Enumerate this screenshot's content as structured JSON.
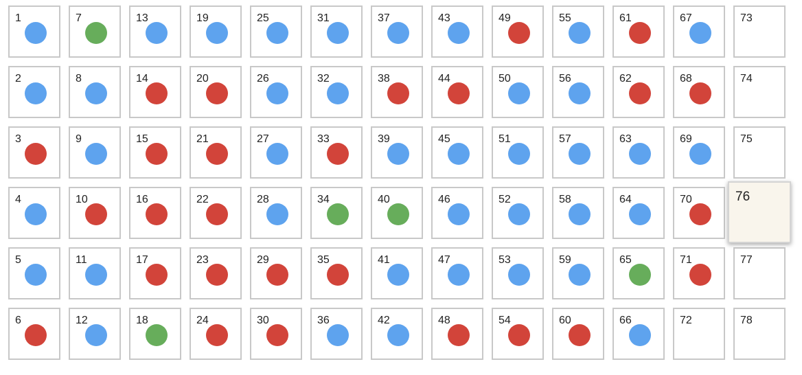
{
  "colors": {
    "blue": "#5ea3ee",
    "red": "#d2443a",
    "green": "#67ad5b",
    "focused_bg": "#f9f5ec",
    "border": "#c8c8c8"
  },
  "grid": {
    "rows": 6,
    "columns": 13,
    "focused_cell": 76,
    "cells": [
      {
        "n": "1",
        "color": "blue"
      },
      {
        "n": "2",
        "color": "blue"
      },
      {
        "n": "3",
        "color": "red"
      },
      {
        "n": "4",
        "color": "blue"
      },
      {
        "n": "5",
        "color": "blue"
      },
      {
        "n": "6",
        "color": "red"
      },
      {
        "n": "7",
        "color": "green"
      },
      {
        "n": "8",
        "color": "blue"
      },
      {
        "n": "9",
        "color": "blue"
      },
      {
        "n": "10",
        "color": "red"
      },
      {
        "n": "11",
        "color": "blue"
      },
      {
        "n": "12",
        "color": "blue"
      },
      {
        "n": "13",
        "color": "blue"
      },
      {
        "n": "14",
        "color": "red"
      },
      {
        "n": "15",
        "color": "red"
      },
      {
        "n": "16",
        "color": "red"
      },
      {
        "n": "17",
        "color": "red"
      },
      {
        "n": "18",
        "color": "green"
      },
      {
        "n": "19",
        "color": "blue"
      },
      {
        "n": "20",
        "color": "red"
      },
      {
        "n": "21",
        "color": "red"
      },
      {
        "n": "22",
        "color": "red"
      },
      {
        "n": "23",
        "color": "red"
      },
      {
        "n": "24",
        "color": "red"
      },
      {
        "n": "25",
        "color": "blue"
      },
      {
        "n": "26",
        "color": "blue"
      },
      {
        "n": "27",
        "color": "blue"
      },
      {
        "n": "28",
        "color": "blue"
      },
      {
        "n": "29",
        "color": "red"
      },
      {
        "n": "30",
        "color": "red"
      },
      {
        "n": "31",
        "color": "blue"
      },
      {
        "n": "32",
        "color": "blue"
      },
      {
        "n": "33",
        "color": "red"
      },
      {
        "n": "34",
        "color": "green"
      },
      {
        "n": "35",
        "color": "red"
      },
      {
        "n": "36",
        "color": "blue"
      },
      {
        "n": "37",
        "color": "blue"
      },
      {
        "n": "38",
        "color": "red"
      },
      {
        "n": "39",
        "color": "blue"
      },
      {
        "n": "40",
        "color": "green"
      },
      {
        "n": "41",
        "color": "blue"
      },
      {
        "n": "42",
        "color": "blue"
      },
      {
        "n": "43",
        "color": "blue"
      },
      {
        "n": "44",
        "color": "red"
      },
      {
        "n": "45",
        "color": "blue"
      },
      {
        "n": "46",
        "color": "blue"
      },
      {
        "n": "47",
        "color": "blue"
      },
      {
        "n": "48",
        "color": "red"
      },
      {
        "n": "49",
        "color": "red"
      },
      {
        "n": "50",
        "color": "blue"
      },
      {
        "n": "51",
        "color": "blue"
      },
      {
        "n": "52",
        "color": "blue"
      },
      {
        "n": "53",
        "color": "blue"
      },
      {
        "n": "54",
        "color": "red"
      },
      {
        "n": "55",
        "color": "blue"
      },
      {
        "n": "56",
        "color": "blue"
      },
      {
        "n": "57",
        "color": "blue"
      },
      {
        "n": "58",
        "color": "blue"
      },
      {
        "n": "59",
        "color": "blue"
      },
      {
        "n": "60",
        "color": "red"
      },
      {
        "n": "61",
        "color": "red"
      },
      {
        "n": "62",
        "color": "red"
      },
      {
        "n": "63",
        "color": "blue"
      },
      {
        "n": "64",
        "color": "blue"
      },
      {
        "n": "65",
        "color": "green"
      },
      {
        "n": "66",
        "color": "blue"
      },
      {
        "n": "67",
        "color": "blue"
      },
      {
        "n": "68",
        "color": "red"
      },
      {
        "n": "69",
        "color": "blue"
      },
      {
        "n": "70",
        "color": "red"
      },
      {
        "n": "71",
        "color": "red"
      },
      {
        "n": "72",
        "color": null
      },
      {
        "n": "73",
        "color": null
      },
      {
        "n": "74",
        "color": null
      },
      {
        "n": "75",
        "color": null
      },
      {
        "n": "76",
        "color": null
      },
      {
        "n": "77",
        "color": null
      },
      {
        "n": "78",
        "color": null
      }
    ]
  }
}
